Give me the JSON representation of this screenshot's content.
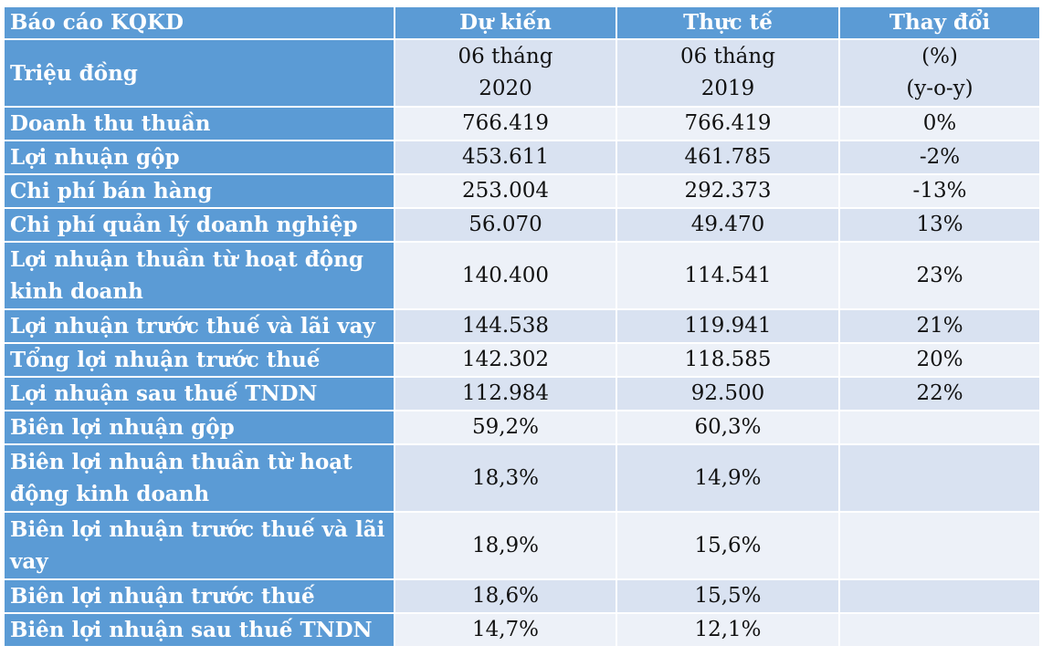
{
  "table": {
    "header": {
      "title": "Báo cáo KQKD",
      "col1": "Dự kiến",
      "col2": "Thực tế",
      "col3": "Thay đổi"
    },
    "subheader": {
      "unit": "Triệu đồng",
      "col1_line1": "06 tháng",
      "col1_line2": "2020",
      "col2_line1": "06 tháng",
      "col2_line2": "2019",
      "col3_line1": "(%)",
      "col3_line2": "(y-o-y)"
    },
    "rows": [
      {
        "label": "Doanh thu thuần",
        "plan": "766.419",
        "actual": "766.419",
        "change": "0%"
      },
      {
        "label": "Lợi nhuận gộp",
        "plan": "453.611",
        "actual": "461.785",
        "change": "-2%"
      },
      {
        "label": "Chi phí bán hàng",
        "plan": "253.004",
        "actual": "292.373",
        "change": "-13%"
      },
      {
        "label": "Chi phí quản lý doanh nghiệp",
        "plan": "56.070",
        "actual": "49.470",
        "change": "13%"
      },
      {
        "label_line1": "Lợi nhuận thuần từ hoạt động",
        "label_line2": "kinh doanh",
        "plan": "140.400",
        "actual": "114.541",
        "change": "23%"
      },
      {
        "label": "Lợi nhuận trước thuế và lãi vay",
        "plan": "144.538",
        "actual": "119.941",
        "change": "21%"
      },
      {
        "label": "Tổng lợi nhuận trước thuế",
        "plan": "142.302",
        "actual": "118.585",
        "change": "20%"
      },
      {
        "label": "Lợi nhuận sau thuế TNDN",
        "plan": "112.984",
        "actual": "92.500",
        "change": "22%"
      },
      {
        "label": "Biên lợi nhuận gộp",
        "plan": "59,2%",
        "actual": "60,3%",
        "change": ""
      },
      {
        "label_line1": "Biên lợi nhuận thuần từ hoạt",
        "label_line2": "động kinh doanh",
        "plan": "18,3%",
        "actual": "14,9%",
        "change": ""
      },
      {
        "label_line1": "Biên lợi nhuận trước thuế và lãi",
        "label_line2": "vay",
        "plan": "18,9%",
        "actual": "15,6%",
        "change": ""
      },
      {
        "label": "Biên lợi nhuận trước thuế",
        "plan": "18,6%",
        "actual": "15,5%",
        "change": ""
      },
      {
        "label": "Biên lợi nhuận sau thuế TNDN",
        "plan": "14,7%",
        "actual": "12,1%",
        "change": ""
      }
    ]
  }
}
